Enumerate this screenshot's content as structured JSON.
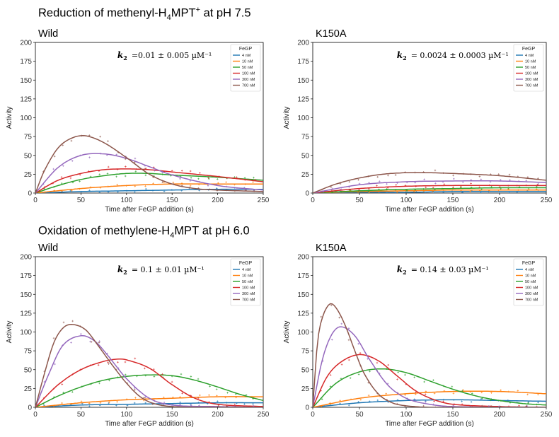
{
  "titles": {
    "top": {
      "pre": "Reduction of methenyl-H",
      "sub": "4",
      "mid": "MPT",
      "sup": "+",
      "post": " at pH 7.5"
    },
    "bottom": {
      "pre": "Oxidation of methylene-H",
      "sub": "4",
      "mid": "MPT",
      "sup": "",
      "post": " at pH 6.0"
    }
  },
  "colors": {
    "4 nM": "#1f77b4",
    "10 nM": "#ff7f0e",
    "50 nM": "#2ca02c",
    "100 nM": "#d62728",
    "300 nM": "#9467bd",
    "700 nM": "#8c564b"
  },
  "chart_data": [
    {
      "type": "line",
      "label": "Wild",
      "k2_text": "=0.01 ± 0.005 µM⁻¹",
      "xlabel": "Time after FeGP addition (s)",
      "ylabel": "Activity",
      "xlim": [
        0,
        250
      ],
      "ylim": [
        0,
        200
      ],
      "xticks": [
        0,
        50,
        100,
        150,
        200,
        250
      ],
      "yticks": [
        0,
        25,
        50,
        75,
        100,
        125,
        150,
        175,
        200
      ],
      "legend": {
        "title": "FeGP",
        "position": "top-right"
      },
      "series": [
        {
          "name": "4 nM",
          "x": [
            0,
            50,
            100,
            150,
            200,
            250
          ],
          "y": [
            0,
            2,
            3,
            4,
            5,
            5
          ]
        },
        {
          "name": "10 nM",
          "x": [
            0,
            50,
            100,
            150,
            200,
            250
          ],
          "y": [
            0,
            6,
            10,
            12,
            12,
            12
          ]
        },
        {
          "name": "50 nM",
          "x": [
            0,
            25,
            50,
            75,
            100,
            125,
            150,
            200,
            250
          ],
          "y": [
            0,
            10,
            18,
            23,
            26,
            26,
            24,
            21,
            17
          ]
        },
        {
          "name": "100 nM",
          "x": [
            0,
            25,
            50,
            75,
            100,
            125,
            150,
            200,
            250
          ],
          "y": [
            0,
            17,
            26,
            31,
            32,
            31,
            28,
            22,
            15
          ]
        },
        {
          "name": "300 nM",
          "x": [
            0,
            25,
            50,
            75,
            100,
            125,
            150,
            200,
            250
          ],
          "y": [
            0,
            34,
            50,
            52,
            46,
            35,
            24,
            10,
            4
          ]
        },
        {
          "name": "700 nM",
          "x": [
            0,
            10,
            25,
            40,
            55,
            75,
            100,
            125,
            150,
            175,
            200,
            250
          ],
          "y": [
            0,
            30,
            60,
            73,
            76,
            67,
            47,
            25,
            12,
            6,
            4,
            2
          ]
        }
      ]
    },
    {
      "type": "line",
      "label": "K150A",
      "k2_text": "= 0.0024 ± 0.0003 µM⁻¹",
      "xlabel": "Time after FeGP addition (s)",
      "ylabel": "Activity",
      "xlim": [
        0,
        250
      ],
      "ylim": [
        0,
        200
      ],
      "xticks": [
        0,
        50,
        100,
        150,
        200,
        250
      ],
      "yticks": [
        0,
        25,
        50,
        75,
        100,
        125,
        150,
        175,
        200
      ],
      "legend": {
        "title": "FeGP",
        "position": "top-right"
      },
      "series": [
        {
          "name": "4 nM",
          "x": [
            0,
            50,
            100,
            150,
            200,
            250
          ],
          "y": [
            0,
            1,
            1,
            2,
            2,
            2
          ]
        },
        {
          "name": "10 nM",
          "x": [
            0,
            50,
            100,
            150,
            200,
            250
          ],
          "y": [
            0,
            2,
            3,
            4,
            4,
            4
          ]
        },
        {
          "name": "50 nM",
          "x": [
            0,
            50,
            100,
            150,
            200,
            250
          ],
          "y": [
            0,
            3,
            5,
            6,
            7,
            7
          ]
        },
        {
          "name": "100 nM",
          "x": [
            0,
            50,
            100,
            150,
            200,
            250
          ],
          "y": [
            0,
            6,
            9,
            10,
            10,
            10
          ]
        },
        {
          "name": "300 nM",
          "x": [
            0,
            50,
            100,
            150,
            200,
            250
          ],
          "y": [
            0,
            11,
            15,
            16,
            16,
            14
          ]
        },
        {
          "name": "700 nM",
          "x": [
            0,
            25,
            50,
            75,
            100,
            125,
            150,
            200,
            250
          ],
          "y": [
            0,
            12,
            20,
            25,
            27,
            27,
            26,
            23,
            17
          ]
        }
      ]
    },
    {
      "type": "line",
      "label": "Wild",
      "k2_text": "= 0.1 ± 0.01 µM⁻¹",
      "xlabel": "Time after FeGP addition (s)",
      "ylabel": "Activity",
      "xlim": [
        0,
        250
      ],
      "ylim": [
        0,
        200
      ],
      "xticks": [
        0,
        50,
        100,
        150,
        200,
        250
      ],
      "yticks": [
        0,
        25,
        50,
        75,
        100,
        125,
        150,
        175,
        200
      ],
      "legend": {
        "title": "FeGP",
        "position": "top-right"
      },
      "series": [
        {
          "name": "4 nM",
          "x": [
            0,
            50,
            100,
            150,
            200,
            250
          ],
          "y": [
            0,
            3,
            4,
            5,
            6,
            6
          ]
        },
        {
          "name": "10 nM",
          "x": [
            0,
            50,
            100,
            150,
            200,
            250
          ],
          "y": [
            0,
            6,
            10,
            12,
            14,
            14
          ]
        },
        {
          "name": "50 nM",
          "x": [
            0,
            25,
            50,
            75,
            100,
            125,
            150,
            175,
            200,
            225,
            250
          ],
          "y": [
            0,
            15,
            27,
            36,
            41,
            43,
            42,
            36,
            27,
            17,
            9
          ]
        },
        {
          "name": "100 nM",
          "x": [
            0,
            25,
            50,
            75,
            90,
            100,
            125,
            150,
            175,
            200,
            250
          ],
          "y": [
            0,
            30,
            50,
            61,
            64,
            63,
            52,
            30,
            12,
            4,
            1
          ]
        },
        {
          "name": "300 nM",
          "x": [
            0,
            15,
            30,
            50,
            65,
            80,
            100,
            125,
            150,
            200,
            250
          ],
          "y": [
            0,
            45,
            82,
            95,
            88,
            68,
            38,
            12,
            3,
            1,
            0
          ]
        },
        {
          "name": "700 nM",
          "x": [
            0,
            10,
            20,
            30,
            40,
            55,
            70,
            85,
            100,
            115,
            130,
            150,
            200,
            250
          ],
          "y": [
            0,
            45,
            85,
            105,
            110,
            103,
            80,
            55,
            32,
            14,
            5,
            1,
            0,
            0
          ]
        }
      ]
    },
    {
      "type": "line",
      "label": "K150A",
      "k2_text": "= 0.14 ± 0.03 µM⁻¹",
      "xlabel": "Time after FeGP addition (s)",
      "ylabel": "Activity",
      "xlim": [
        0,
        250
      ],
      "ylim": [
        0,
        200
      ],
      "xticks": [
        0,
        50,
        100,
        150,
        200,
        250
      ],
      "yticks": [
        0,
        25,
        50,
        75,
        100,
        125,
        150,
        175,
        200
      ],
      "legend": {
        "title": "FeGP",
        "position": "top-right"
      },
      "series": [
        {
          "name": "4 nM",
          "x": [
            0,
            50,
            100,
            150,
            200,
            250
          ],
          "y": [
            0,
            6,
            9,
            10,
            9,
            8
          ]
        },
        {
          "name": "10 nM",
          "x": [
            0,
            50,
            100,
            150,
            200,
            250
          ],
          "y": [
            0,
            12,
            18,
            21,
            21,
            18
          ]
        },
        {
          "name": "50 nM",
          "x": [
            0,
            25,
            50,
            75,
            100,
            125,
            150,
            175,
            200,
            225,
            250
          ],
          "y": [
            0,
            32,
            47,
            51,
            46,
            35,
            24,
            15,
            9,
            5,
            3
          ]
        },
        {
          "name": "100 nM",
          "x": [
            0,
            15,
            30,
            50,
            70,
            90,
            110,
            130,
            150,
            200,
            250
          ],
          "y": [
            0,
            40,
            60,
            70,
            62,
            42,
            22,
            10,
            4,
            1,
            0
          ]
        },
        {
          "name": "300 nM",
          "x": [
            0,
            10,
            20,
            30,
            45,
            60,
            80,
            100,
            125,
            150,
            250
          ],
          "y": [
            0,
            62,
            96,
            107,
            95,
            65,
            30,
            12,
            4,
            1,
            0
          ]
        },
        {
          "name": "700 nM",
          "x": [
            0,
            5,
            10,
            18,
            25,
            35,
            45,
            55,
            70,
            85,
            100,
            125,
            150,
            250
          ],
          "y": [
            0,
            85,
            118,
            137,
            132,
            108,
            75,
            45,
            18,
            6,
            2,
            0,
            0,
            0
          ]
        }
      ]
    }
  ]
}
